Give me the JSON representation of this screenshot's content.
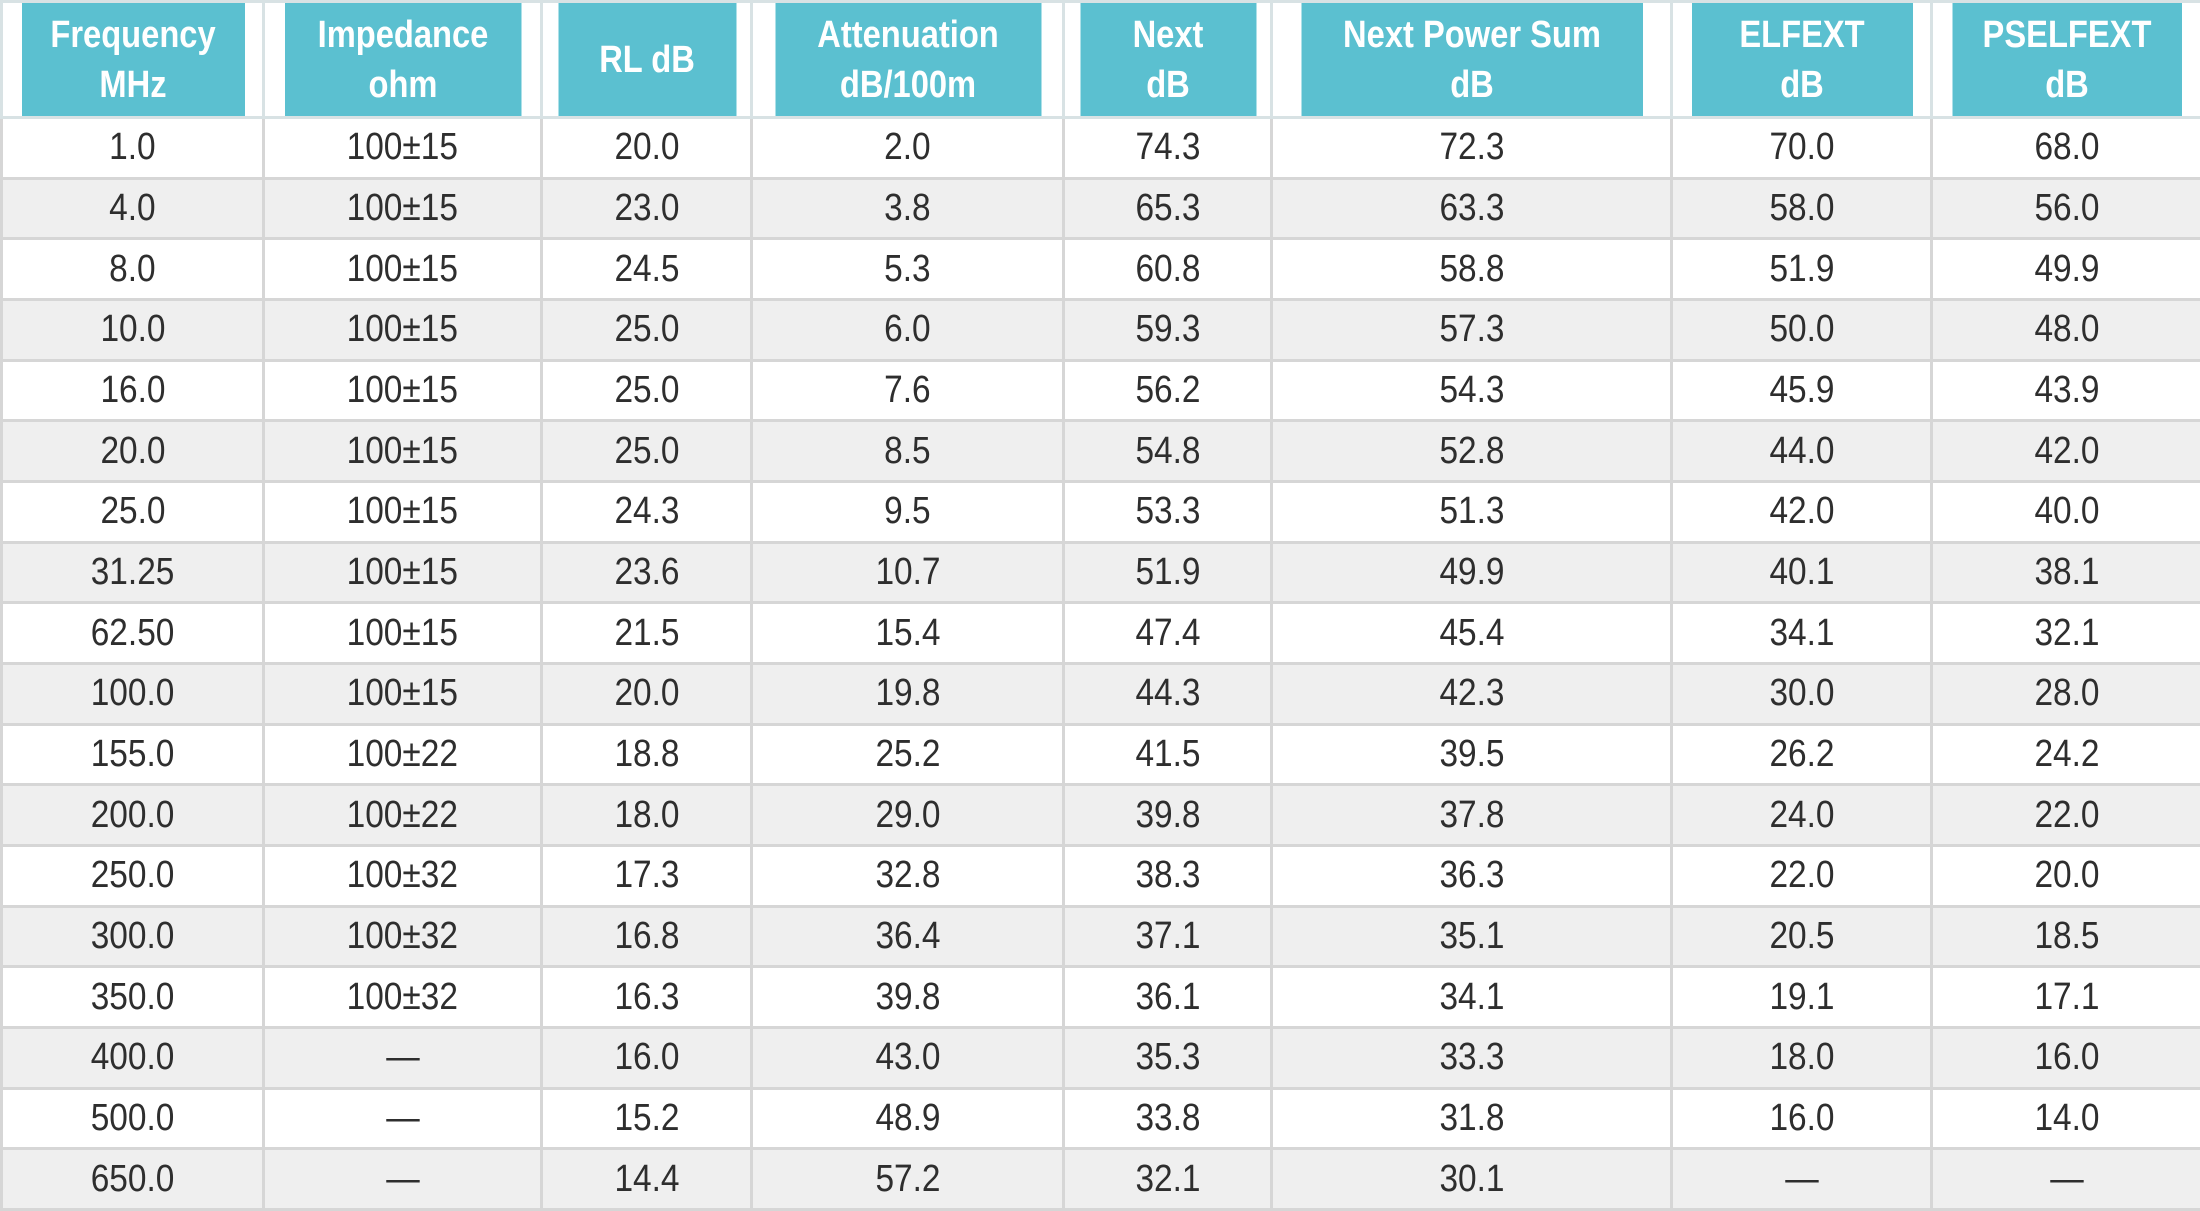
{
  "table": {
    "header": [
      [
        "Frequency",
        "MHz"
      ],
      [
        "Impedance",
        "ohm"
      ],
      [
        "RL dB"
      ],
      [
        "Attenuation",
        "dB/100m"
      ],
      [
        "Next",
        "dB"
      ],
      [
        "Next Power Sum",
        "dB"
      ],
      [
        "ELFEXT",
        "dB"
      ],
      [
        "PSELFEXT",
        "dB"
      ]
    ],
    "rows": [
      [
        "1.0",
        "100±15",
        "20.0",
        "2.0",
        "74.3",
        "72.3",
        "70.0",
        "68.0"
      ],
      [
        "4.0",
        "100±15",
        "23.0",
        "3.8",
        "65.3",
        "63.3",
        "58.0",
        "56.0"
      ],
      [
        "8.0",
        "100±15",
        "24.5",
        "5.3",
        "60.8",
        "58.8",
        "51.9",
        "49.9"
      ],
      [
        "10.0",
        "100±15",
        "25.0",
        "6.0",
        "59.3",
        "57.3",
        "50.0",
        "48.0"
      ],
      [
        "16.0",
        "100±15",
        "25.0",
        "7.6",
        "56.2",
        "54.3",
        "45.9",
        "43.9"
      ],
      [
        "20.0",
        "100±15",
        "25.0",
        "8.5",
        "54.8",
        "52.8",
        "44.0",
        "42.0"
      ],
      [
        "25.0",
        "100±15",
        "24.3",
        "9.5",
        "53.3",
        "51.3",
        "42.0",
        "40.0"
      ],
      [
        "31.25",
        "100±15",
        "23.6",
        "10.7",
        "51.9",
        "49.9",
        "40.1",
        "38.1"
      ],
      [
        "62.50",
        "100±15",
        "21.5",
        "15.4",
        "47.4",
        "45.4",
        "34.1",
        "32.1"
      ],
      [
        "100.0",
        "100±15",
        "20.0",
        "19.8",
        "44.3",
        "42.3",
        "30.0",
        "28.0"
      ],
      [
        "155.0",
        "100±22",
        "18.8",
        "25.2",
        "41.5",
        "39.5",
        "26.2",
        "24.2"
      ],
      [
        "200.0",
        "100±22",
        "18.0",
        "29.0",
        "39.8",
        "37.8",
        "24.0",
        "22.0"
      ],
      [
        "250.0",
        "100±32",
        "17.3",
        "32.8",
        "38.3",
        "36.3",
        "22.0",
        "20.0"
      ],
      [
        "300.0",
        "100±32",
        "16.8",
        "36.4",
        "37.1",
        "35.1",
        "20.5",
        "18.5"
      ],
      [
        "350.0",
        "100±32",
        "16.3",
        "39.8",
        "36.1",
        "34.1",
        "19.1",
        "17.1"
      ],
      [
        "400.0",
        "—",
        "16.0",
        "43.0",
        "35.3",
        "33.3",
        "18.0",
        "16.0"
      ],
      [
        "500.0",
        "—",
        "15.2",
        "48.9",
        "33.8",
        "31.8",
        "16.0",
        "14.0"
      ],
      [
        "650.0",
        "—",
        "14.4",
        "57.2",
        "32.1",
        "30.1",
        "—",
        "—"
      ]
    ]
  },
  "colors": {
    "header_bg": "#5bc0d0",
    "header_text": "#ffffff",
    "row_alt_bg": "#efefef",
    "border": "#d6d6d6"
  }
}
